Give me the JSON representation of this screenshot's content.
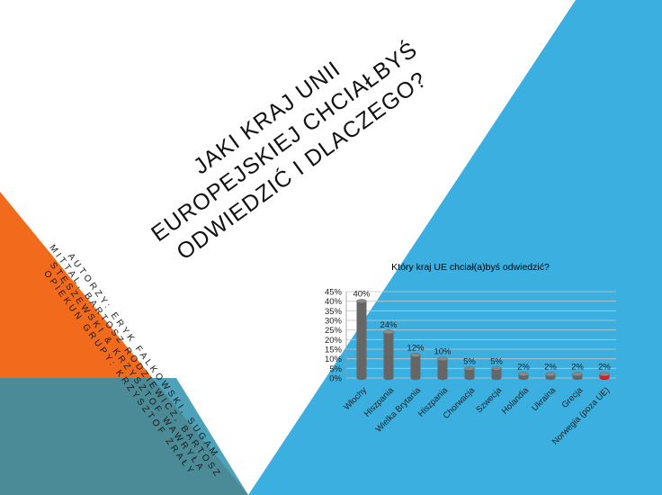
{
  "slide": {
    "title": "Jaki kraj Unii Europejskiej chciałbyś odwiedzić i dlaczego?",
    "authors": "Autorzy: Eryk Falkowski, Sugam Mittal, Bartosz Rodziewicz, Bartosz Stęszewski & Krzysztof Wawryła\nOpiekun grupy: Krzysztof Żrały",
    "colors": {
      "blue": "#3aafe0",
      "orange": "#f26b1d",
      "teal": "#2b8aa6",
      "bar": "#666666",
      "bar_highlight": "#e11a1a"
    }
  },
  "chart_data": {
    "type": "bar",
    "title": "Który kraj UE chciał(a)byś odwiedzić?",
    "categories": [
      "Włochy",
      "Hiszpania",
      "Wielka Brytania",
      "Hiszpania",
      "Chorwacja",
      "Szwecja",
      "Holandia",
      "Ukraina",
      "Grecja",
      "Norwegia (poza UE)"
    ],
    "values": [
      40,
      24,
      12,
      10,
      5,
      5,
      2,
      2,
      2,
      2
    ],
    "data_labels": [
      "40%",
      "24%",
      "12%",
      "10%",
      "5%",
      "5%",
      "2%",
      "2%",
      "2%",
      "2%"
    ],
    "highlight_index": 9,
    "y_ticks": [
      "0%",
      "5%",
      "10%",
      "15%",
      "20%",
      "25%",
      "30%",
      "35%",
      "40%",
      "45%"
    ],
    "ylim": [
      0,
      45
    ],
    "grid": true,
    "legend": "none"
  }
}
